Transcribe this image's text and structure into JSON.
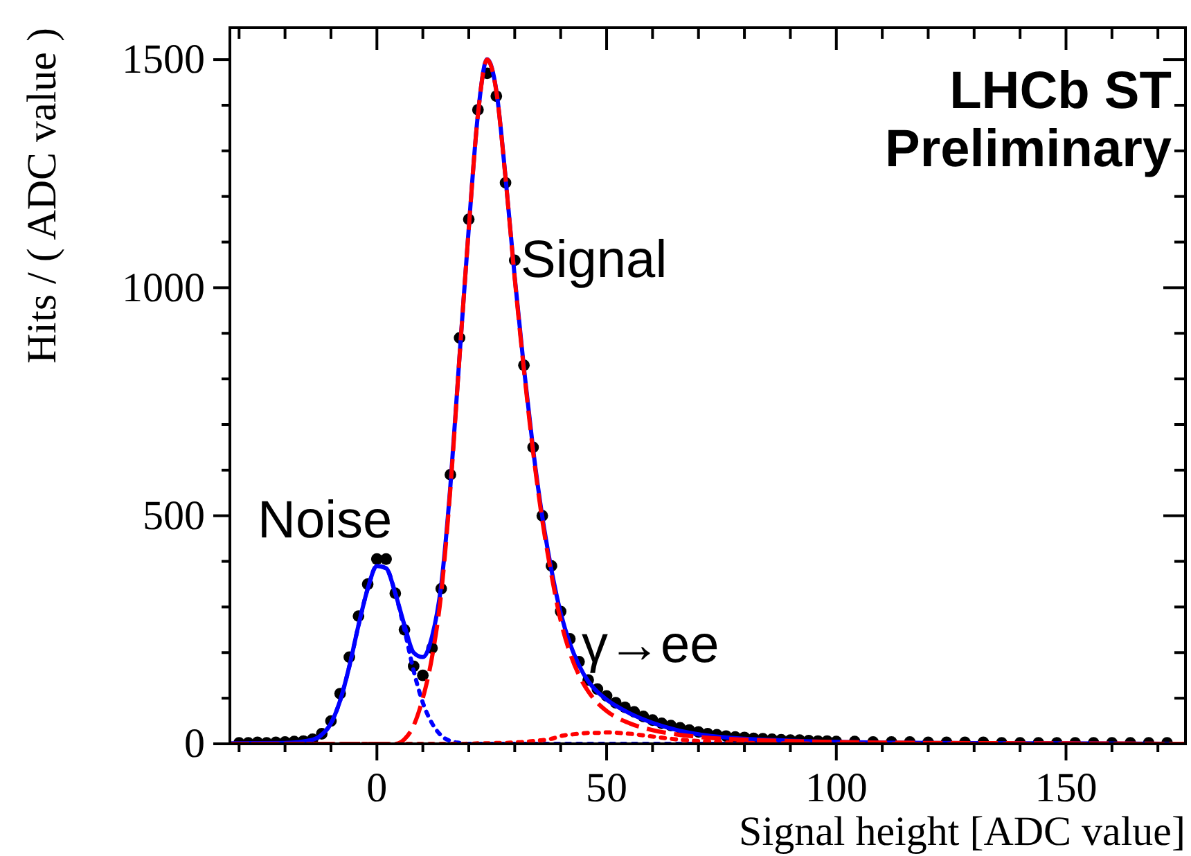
{
  "chart_data": {
    "type": "line",
    "xlabel": "Signal height [ADC value]",
    "ylabel": "Hits / ( ADC value )",
    "xlim": [
      -32,
      176
    ],
    "ylim": [
      0,
      1570
    ],
    "xticks": [
      {
        "value": -30,
        "label": null
      },
      {
        "value": -20,
        "label": null
      },
      {
        "value": -10,
        "label": null
      },
      0,
      {
        "value": 10,
        "label": null
      },
      {
        "value": 20,
        "label": null
      },
      {
        "value": 30,
        "label": null
      },
      {
        "value": 40,
        "label": null
      },
      50,
      {
        "value": 60,
        "label": null
      },
      {
        "value": 70,
        "label": null
      },
      {
        "value": 80,
        "label": null
      },
      {
        "value": 90,
        "label": null
      },
      100,
      {
        "value": 110,
        "label": null
      },
      {
        "value": 120,
        "label": null
      },
      {
        "value": 130,
        "label": null
      },
      {
        "value": 140,
        "label": null
      },
      150,
      {
        "value": 160,
        "label": null
      },
      {
        "value": 170,
        "label": null
      }
    ],
    "yticks": [
      0,
      {
        "value": 100,
        "label": null
      },
      {
        "value": 200,
        "label": null
      },
      {
        "value": 300,
        "label": null
      },
      {
        "value": 400,
        "label": null
      },
      500,
      {
        "value": 600,
        "label": null
      },
      {
        "value": 700,
        "label": null
      },
      {
        "value": 800,
        "label": null
      },
      {
        "value": 900,
        "label": null
      },
      1000,
      {
        "value": 1100,
        "label": null
      },
      {
        "value": 1200,
        "label": null
      },
      {
        "value": 1300,
        "label": null
      },
      {
        "value": 1400,
        "label": null
      },
      1500
    ],
    "series": [
      {
        "color": "#0000ff",
        "line_style": "solid",
        "marker": "none",
        "x": [
          -32,
          -20,
          -14,
          -12,
          -10,
          -8,
          -6,
          -4,
          -2,
          0,
          2,
          4,
          6,
          8,
          10,
          12,
          14,
          16,
          18,
          20,
          22,
          24,
          26,
          28,
          30,
          32,
          34,
          36,
          38,
          40,
          42,
          44,
          46,
          48,
          50,
          55,
          60,
          65,
          70,
          80,
          90,
          100,
          120,
          150,
          176
        ],
        "values": [
          1,
          2,
          9,
          20,
          45,
          95,
          170,
          260,
          340,
          390,
          385,
          330,
          260,
          200,
          190,
          235,
          348,
          566,
          852,
          1131,
          1381,
          1501,
          1432,
          1242,
          1023,
          824,
          646,
          498,
          381,
          287,
          220,
          172,
          137,
          114,
          97,
          67,
          46,
          31,
          21,
          11,
          7,
          4,
          2,
          1,
          0
        ]
      },
      {
        "color": "#0000ff",
        "line_style": "dotted",
        "marker": "none",
        "x": [
          -32,
          -20,
          -14,
          -12,
          -10,
          -8,
          -6,
          -4,
          -2,
          0,
          2,
          4,
          6,
          8,
          10,
          12,
          14,
          16,
          18,
          20,
          24,
          30,
          50,
          100,
          176
        ],
        "values": [
          0,
          1,
          8,
          20,
          45,
          95,
          170,
          260,
          340,
          390,
          385,
          330,
          250,
          160,
          90,
          45,
          18,
          6,
          2,
          0,
          0,
          0,
          0,
          0,
          0
        ]
      },
      {
        "color": "#ff0000",
        "line_style": "dashed",
        "marker": "none",
        "x": [
          -32,
          0,
          4,
          6,
          8,
          10,
          12,
          14,
          16,
          18,
          20,
          22,
          24,
          26,
          28,
          30,
          32,
          34,
          36,
          38,
          40,
          42,
          44,
          46,
          48,
          50,
          55,
          60,
          65,
          70,
          80,
          90,
          100,
          120,
          150,
          176
        ],
        "values": [
          0,
          0,
          0,
          10,
          40,
          100,
          190,
          330,
          560,
          850,
          1130,
          1380,
          1500,
          1430,
          1240,
          1020,
          820,
          640,
          490,
          370,
          270,
          200,
          150,
          115,
          90,
          72,
          45,
          30,
          21,
          15,
          9,
          6,
          4,
          2,
          1,
          0
        ]
      },
      {
        "color": "#ff0000",
        "line_style": "dotted",
        "marker": "none",
        "x": [
          -32,
          0,
          20,
          22,
          24,
          26,
          28,
          30,
          32,
          34,
          36,
          38,
          40,
          42,
          44,
          46,
          48,
          50,
          55,
          60,
          65,
          70,
          80,
          90,
          100,
          120,
          176
        ],
        "values": [
          0,
          0,
          0,
          1,
          1,
          2,
          2,
          3,
          4,
          6,
          8,
          11,
          17,
          20,
          22,
          24,
          24,
          25,
          22,
          16,
          10,
          6,
          2,
          1,
          0,
          0,
          0
        ]
      },
      {
        "type": "scatter",
        "color": "#000000",
        "marker": "circle",
        "x": [
          -30,
          -28,
          -26,
          -24,
          -22,
          -20,
          -18,
          -16,
          -14,
          -12,
          -10,
          -8,
          -6,
          -4,
          -2,
          0,
          2,
          4,
          6,
          8,
          10,
          12,
          14,
          16,
          18,
          20,
          22,
          24,
          26,
          28,
          30,
          32,
          34,
          36,
          38,
          40,
          42,
          44,
          46,
          48,
          50,
          52,
          54,
          56,
          58,
          60,
          62,
          64,
          66,
          68,
          70,
          72,
          74,
          76,
          78,
          80,
          82,
          84,
          86,
          88,
          90,
          92,
          94,
          96,
          98,
          100,
          104,
          108,
          112,
          116,
          120,
          124,
          128,
          132,
          136,
          140,
          144,
          148,
          152,
          156,
          160,
          164,
          168,
          172
        ],
        "values": [
          2,
          2,
          3,
          2,
          3,
          4,
          5,
          6,
          10,
          22,
          50,
          110,
          190,
          280,
          350,
          405,
          405,
          330,
          250,
          170,
          150,
          210,
          340,
          590,
          890,
          1150,
          1390,
          1470,
          1420,
          1230,
          1060,
          830,
          650,
          500,
          390,
          290,
          230,
          180,
          140,
          120,
          105,
          90,
          80,
          70,
          60,
          52,
          45,
          40,
          35,
          30,
          26,
          22,
          20,
          17,
          15,
          14,
          12,
          11,
          10,
          9,
          8,
          8,
          7,
          6,
          6,
          5,
          5,
          4,
          4,
          4,
          3,
          3,
          3,
          3,
          2,
          2,
          2,
          2,
          2,
          2,
          2,
          2,
          2,
          2
        ]
      }
    ],
    "annotations": [
      "Noise",
      "Signal",
      "γ→ee",
      "LHCb ST\nPreliminary"
    ]
  }
}
